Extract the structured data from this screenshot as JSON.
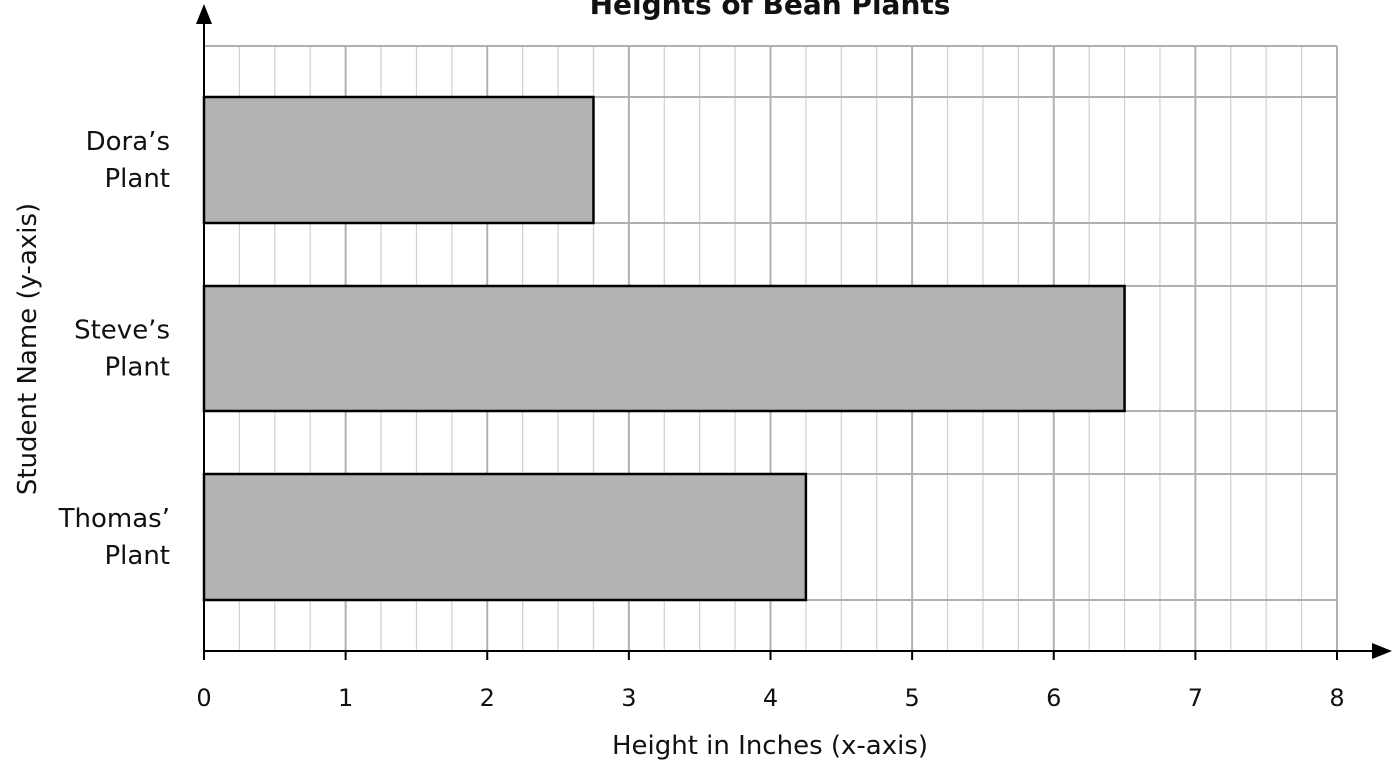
{
  "chart_data": {
    "type": "bar",
    "orientation": "horizontal",
    "title": "Heights of Bean Plants",
    "xlabel": "Height in Inches (x-axis)",
    "ylabel": "Student Name (y-axis)",
    "categories": [
      [
        "Dora’s",
        "Plant"
      ],
      [
        "Steve’s",
        "Plant"
      ],
      [
        "Thomas’",
        "Plant"
      ]
    ],
    "values": [
      2.75,
      6.5,
      4.25
    ],
    "xlim": [
      0,
      8
    ],
    "xticks": [
      "0",
      "1",
      "2",
      "3",
      "4",
      "5",
      "6",
      "7",
      "8"
    ],
    "minor_step": 0.25,
    "grid": true,
    "colors": {
      "bar_fill": "#b3b3b3",
      "bar_stroke": "#000000",
      "grid_major": "#b0b0b0",
      "grid_minor": "#d0d0d0",
      "axis": "#000000"
    }
  }
}
